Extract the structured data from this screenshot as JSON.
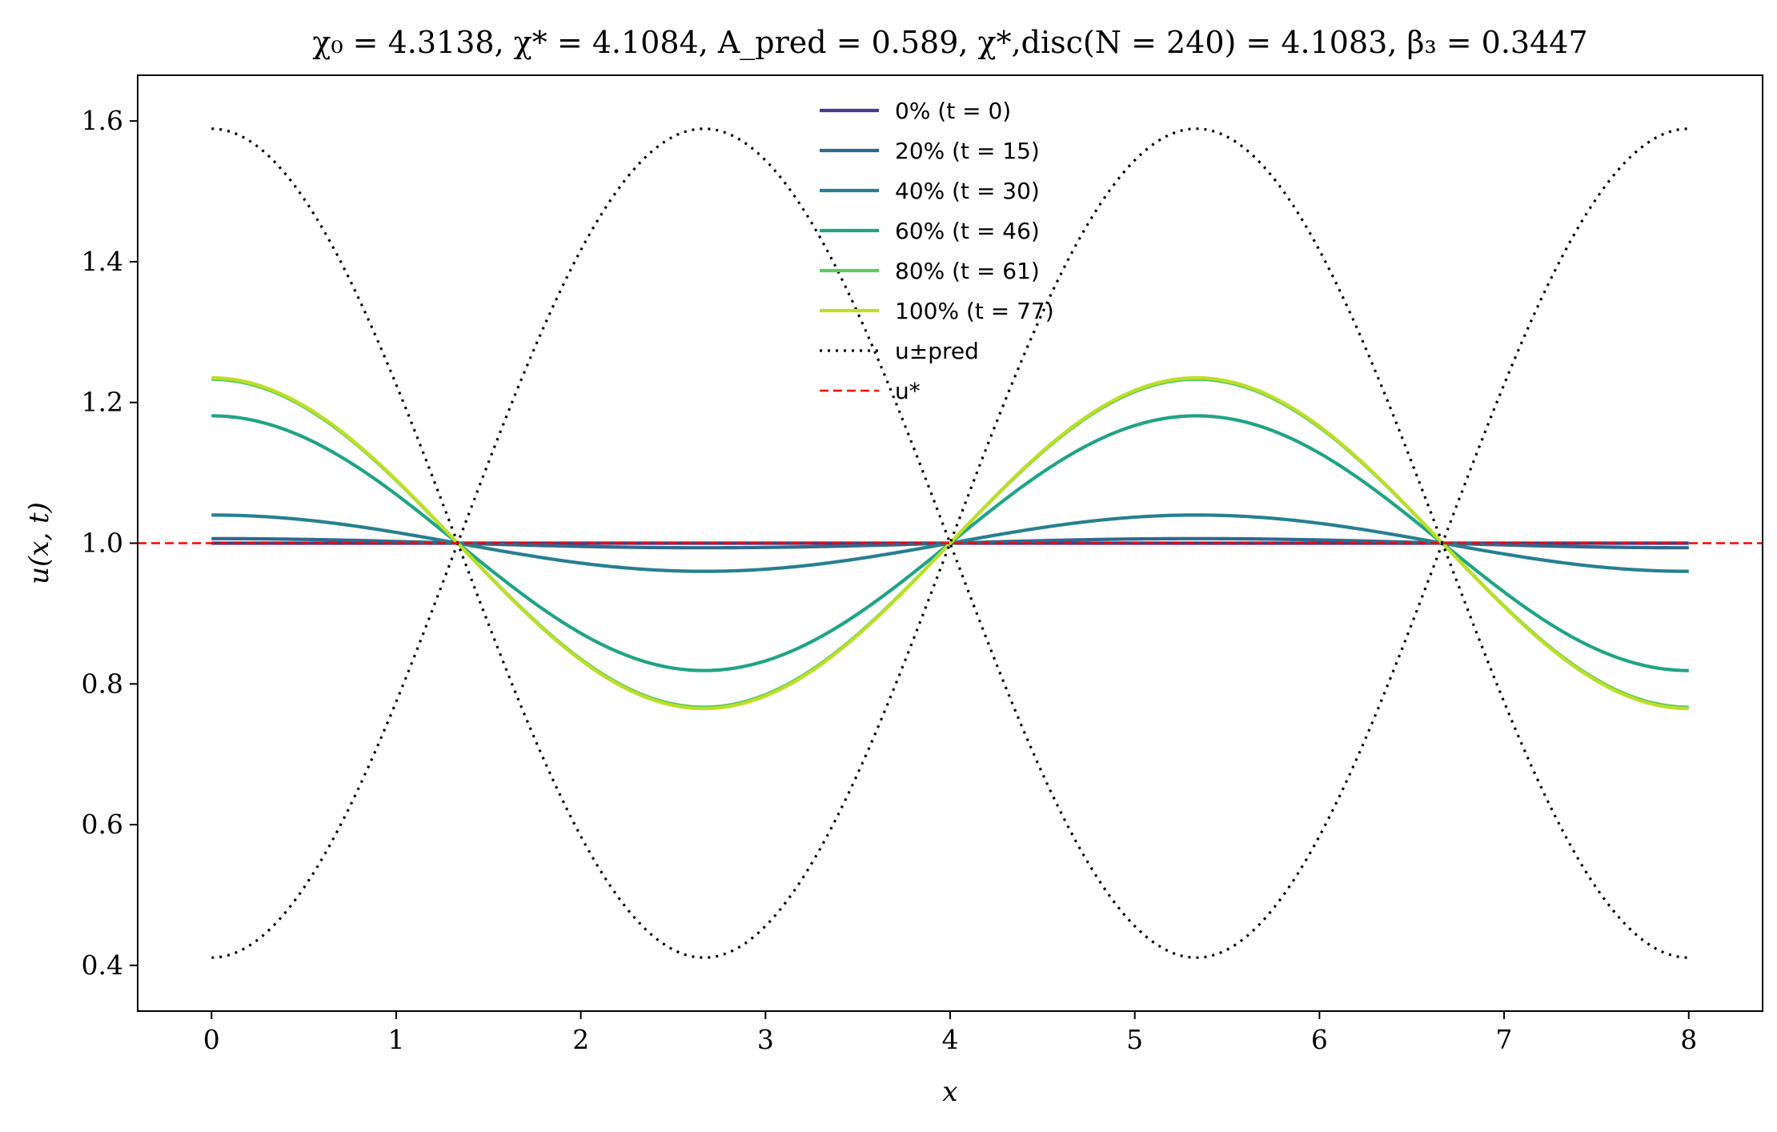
{
  "chart_data": {
    "type": "line",
    "title": "χ₀ = 4.3138,  χ* = 4.1084,  A_pred = 0.589,  χ*,disc(N = 240) = 4.1083,  β₃ = 0.3447",
    "xlabel": "x",
    "ylabel": "u(x, t)",
    "xlim": [
      -0.4,
      8.4
    ],
    "ylim": [
      0.335,
      1.665
    ],
    "x_ticks": [
      "0",
      "1",
      "2",
      "3",
      "4",
      "5",
      "6",
      "7",
      "8"
    ],
    "y_ticks": [
      "0.4",
      "0.6",
      "0.8",
      "1.0",
      "1.2",
      "1.4",
      "1.6"
    ],
    "grid": false,
    "legend_position": "top-center",
    "domain_length": 8,
    "series": [
      {
        "name": "0% (t = 0)",
        "color": "#433e85",
        "style": "solid",
        "amplitude": 0.0,
        "wavelength": 5.333
      },
      {
        "name": "20% (t = 15)",
        "color": "#31688e",
        "style": "solid",
        "amplitude": 0.0065,
        "wavelength": 5.333
      },
      {
        "name": "40% (t = 30)",
        "color": "#27808e",
        "style": "solid",
        "amplitude": 0.04,
        "wavelength": 5.333
      },
      {
        "name": "60% (t = 46)",
        "color": "#20a486",
        "style": "solid",
        "amplitude": 0.181,
        "wavelength": 5.333
      },
      {
        "name": "80% (t = 61)",
        "color": "#5ec962",
        "style": "solid",
        "amplitude": 0.233,
        "wavelength": 5.333
      },
      {
        "name": "100% (t = 77)",
        "color": "#bddf26",
        "style": "solid",
        "amplitude": 0.235,
        "wavelength": 5.333
      },
      {
        "name": "u±pred",
        "color": "#000000",
        "style": "dotted",
        "amplitude": 0.589,
        "wavelength": 5.333
      },
      {
        "name": "u*",
        "color": "#ff0000",
        "style": "dashed",
        "value": 1.0
      }
    ]
  }
}
